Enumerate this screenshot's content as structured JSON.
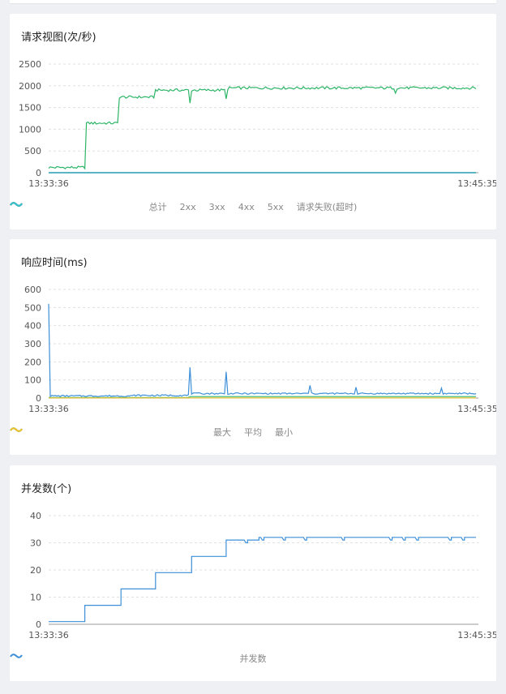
{
  "cards": [
    {
      "title": "请求视图(次/秒)",
      "legend": [
        {
          "label": "总计",
          "color": "#3d8fd8"
        },
        {
          "label": "2xx",
          "color": "#2db567"
        },
        {
          "label": "3xx",
          "color": "#f2c22c"
        },
        {
          "label": "4xx",
          "color": "#2b3a8f"
        },
        {
          "label": "5xx",
          "color": "#8c54d8"
        },
        {
          "label": "请求失败(超时)",
          "color": "#2ec7c9"
        }
      ]
    },
    {
      "title": "响应时间(ms)",
      "legend": [
        {
          "label": "最大",
          "color": "#3d8fd8"
        },
        {
          "label": "平均",
          "color": "#2db567"
        },
        {
          "label": "最小",
          "color": "#f2c22c"
        }
      ]
    },
    {
      "title": "并发数(个)",
      "legend": [
        {
          "label": "并发数",
          "color": "#3d8fd8"
        }
      ]
    }
  ],
  "chart_data": [
    {
      "type": "line",
      "title": "请求视图(次/秒)",
      "x_start": "13:33:36",
      "x_end": "13:45:35",
      "ylim": [
        0,
        2500
      ],
      "yticks": [
        0,
        500,
        1000,
        1500,
        2000,
        2500
      ],
      "grid": true,
      "legend_position": "bottom",
      "series": [
        {
          "name": "总计",
          "color": "#3d8fd8",
          "steps": [
            [
              0.0,
              0.085,
              0
            ],
            [
              0.085,
              0.165,
              0
            ],
            [
              0.165,
              0.25,
              0
            ],
            [
              0.25,
              0.42,
              0
            ],
            [
              0.42,
              1.0,
              0
            ]
          ]
        },
        {
          "name": "2xx",
          "color": "#2db567",
          "steps": [
            [
              0.0,
              0.085,
              120
            ],
            [
              0.085,
              0.165,
              1140
            ],
            [
              0.165,
              0.25,
              1740
            ],
            [
              0.25,
              0.42,
              1900
            ],
            [
              0.42,
              1.0,
              1950
            ]
          ]
        },
        {
          "name": "3xx",
          "color": "#f2c22c",
          "steps": [
            [
              0.0,
              1.0,
              0
            ]
          ]
        },
        {
          "name": "4xx",
          "color": "#2b3a8f",
          "steps": [
            [
              0.0,
              1.0,
              0
            ]
          ]
        },
        {
          "name": "5xx",
          "color": "#8c54d8",
          "steps": [
            [
              0.0,
              1.0,
              0
            ]
          ]
        },
        {
          "name": "请求失败(超时)",
          "color": "#2ec7c9",
          "steps": [
            [
              0.0,
              1.0,
              0
            ]
          ]
        }
      ],
      "spikes": [
        {
          "series": "2xx",
          "x": 0.33,
          "value": 1600
        },
        {
          "series": "2xx",
          "x": 0.415,
          "value": 1700
        },
        {
          "series": "2xx",
          "x": 0.81,
          "value": 1830
        }
      ]
    },
    {
      "type": "line",
      "title": "响应时间(ms)",
      "x_start": "13:33:36",
      "x_end": "13:45:35",
      "ylim": [
        0,
        600
      ],
      "yticks": [
        0,
        100,
        200,
        300,
        400,
        500,
        600
      ],
      "grid": true,
      "legend_position": "bottom",
      "series": [
        {
          "name": "最大",
          "color": "#3d8fd8",
          "steps": [
            [
              0.0,
              0.2,
              12
            ],
            [
              0.2,
              0.33,
              15
            ],
            [
              0.33,
              1.0,
              25
            ]
          ]
        },
        {
          "name": "平均",
          "color": "#2db567",
          "steps": [
            [
              0.0,
              0.33,
              3
            ],
            [
              0.33,
              1.0,
              8
            ]
          ]
        },
        {
          "name": "最小",
          "color": "#f2c22c",
          "steps": [
            [
              0.0,
              1.0,
              1
            ]
          ]
        }
      ],
      "spikes": [
        {
          "series": "最大",
          "x": 0.0,
          "value": 520
        },
        {
          "series": "最大",
          "x": 0.33,
          "value": 170
        },
        {
          "series": "最大",
          "x": 0.415,
          "value": 145
        },
        {
          "series": "最大",
          "x": 0.61,
          "value": 70
        },
        {
          "series": "最大",
          "x": 0.72,
          "value": 60
        },
        {
          "series": "最大",
          "x": 0.92,
          "value": 55
        }
      ]
    },
    {
      "type": "line",
      "title": "并发数(个)",
      "x_start": "13:33:36",
      "x_end": "13:45:35",
      "ylim": [
        0,
        40
      ],
      "yticks": [
        0,
        10,
        20,
        30,
        40
      ],
      "grid": true,
      "legend_position": "bottom",
      "series": [
        {
          "name": "并发数",
          "color": "#3d8fd8",
          "steps": [
            [
              0.0,
              0.083,
              1
            ],
            [
              0.083,
              0.166,
              7
            ],
            [
              0.166,
              0.249,
              13
            ],
            [
              0.249,
              0.332,
              19
            ],
            [
              0.332,
              0.415,
              25
            ],
            [
              0.415,
              0.49,
              31
            ],
            [
              0.49,
              1.0,
              32
            ]
          ]
        }
      ],
      "dips": [
        {
          "x": 0.46,
          "value": 30
        },
        {
          "x": 0.5,
          "value": 31
        },
        {
          "x": 0.55,
          "value": 31
        },
        {
          "x": 0.6,
          "value": 31
        },
        {
          "x": 0.69,
          "value": 31
        },
        {
          "x": 0.8,
          "value": 31
        },
        {
          "x": 0.83,
          "value": 31
        },
        {
          "x": 0.86,
          "value": 31
        },
        {
          "x": 0.94,
          "value": 31
        },
        {
          "x": 0.97,
          "value": 31
        }
      ]
    }
  ]
}
